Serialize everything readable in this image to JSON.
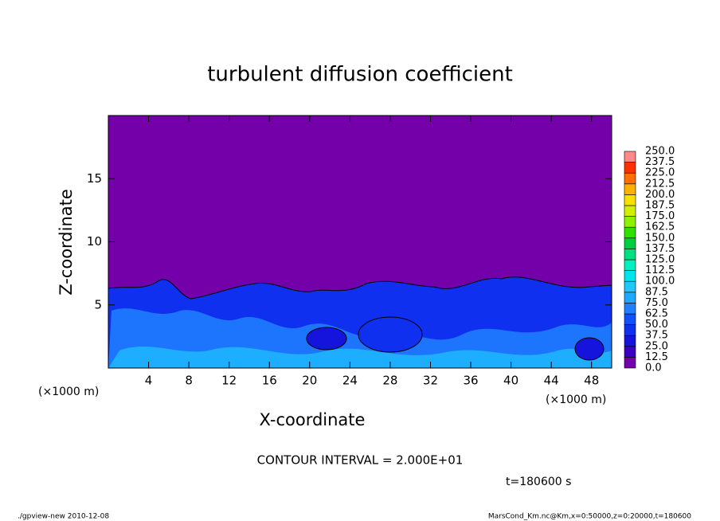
{
  "chart_data": {
    "type": "contour",
    "title": "turbulent diffusion coefficient",
    "xlabel": "X-coordinate",
    "ylabel": "Z-coordinate",
    "xunit": "(×1000 m)",
    "yunit": "(×1000 m)",
    "xlim": [
      0,
      50
    ],
    "ylim": [
      0,
      20
    ],
    "xticks": [
      4,
      8,
      12,
      16,
      20,
      24,
      28,
      32,
      36,
      40,
      44,
      48
    ],
    "yticks": [
      5,
      10,
      15
    ],
    "levels": [
      {
        "value": 0,
        "label": "0.0"
      },
      {
        "value": 12.5,
        "label": "12.5"
      },
      {
        "value": 25,
        "label": "25.0"
      },
      {
        "value": 37.5,
        "label": "37.5"
      },
      {
        "value": 50,
        "label": "50.0"
      },
      {
        "value": 62.5,
        "label": "62.5"
      },
      {
        "value": 75,
        "label": "75.0"
      },
      {
        "value": 87.5,
        "label": "87.5"
      },
      {
        "value": 100,
        "label": "100.0"
      },
      {
        "value": 112.5,
        "label": "112.5"
      },
      {
        "value": 125,
        "label": "125.0"
      },
      {
        "value": 137.5,
        "label": "137.5"
      },
      {
        "value": 150,
        "label": "150.0"
      },
      {
        "value": 162.5,
        "label": "162.5"
      },
      {
        "value": 175,
        "label": "175.0"
      },
      {
        "value": 187.5,
        "label": "187.5"
      },
      {
        "value": 200,
        "label": "200.0"
      },
      {
        "value": 212.5,
        "label": "212.5"
      },
      {
        "value": 225,
        "label": "225.0"
      },
      {
        "value": 237.5,
        "label": "237.5"
      },
      {
        "value": 250,
        "label": "250.0"
      }
    ],
    "colors": [
      "#7400aa",
      "#3a00c4",
      "#1414dc",
      "#1030f0",
      "#1050ff",
      "#2080ff",
      "#20a8ff",
      "#20c8ff",
      "#00e4f0",
      "#00f0c0",
      "#00e080",
      "#00d040",
      "#30e000",
      "#90f000",
      "#d0f000",
      "#f8e000",
      "#ffb000",
      "#ff7000",
      "#ff3000",
      "#ff8888"
    ],
    "contour_interval": "CONTOUR INTERVAL = 2.000E+01",
    "time_label": "t=180600 s",
    "footer_left": "./gpview-new  2010-12-08",
    "footer_right": "MarsCond_Km.nc@Km,x=0:50000,z=0:20000,t=180600"
  }
}
